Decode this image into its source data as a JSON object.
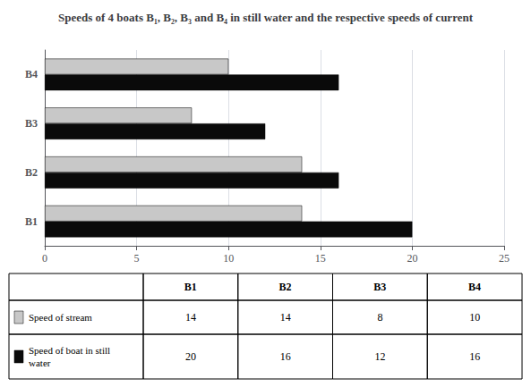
{
  "chart_data": {
    "type": "bar",
    "title": "Speeds of 4 boats B₁, B₂, B₃ and B₄ in still water and the respective speeds of current",
    "orientation": "horizontal",
    "categories": [
      "B1",
      "B2",
      "B3",
      "B4"
    ],
    "series": [
      {
        "name": "Speed of stream",
        "color": "#c8c8c8",
        "values": [
          14,
          14,
          8,
          10
        ]
      },
      {
        "name": "Speed of boat in still water",
        "color": "#0a0a0a",
        "values": [
          20,
          16,
          12,
          16
        ]
      }
    ],
    "xlim": [
      0,
      25
    ],
    "xticks": [
      0,
      5,
      10,
      15,
      20,
      25
    ],
    "grid": true
  }
}
